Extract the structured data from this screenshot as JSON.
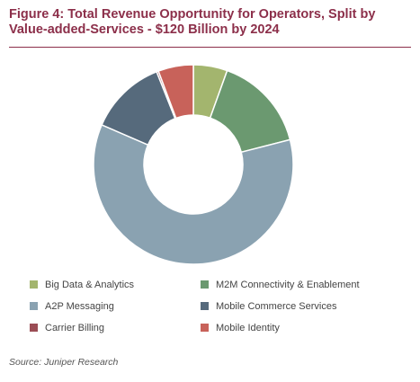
{
  "chart_data": {
    "type": "pie",
    "variant": "donut",
    "title": "Figure 4: Total Revenue Opportunity for Operators, Split by Value-added-Services - $120 Billion by 2024",
    "categories": [
      "Big Data & Analytics",
      "M2M Connectivity & Enablement",
      "A2P Messaging",
      "Mobile Commerce Services",
      "Carrier Billing",
      "Mobile Identity"
    ],
    "values": [
      5.5,
      15.5,
      60.5,
      12.5,
      0.3,
      5.7
    ],
    "value_unit": "percent (estimated)",
    "colors": [
      "#a3b56e",
      "#6b9970",
      "#8aa2b1",
      "#566a7c",
      "#9b4d55",
      "#c8625a"
    ],
    "legend_position": "bottom"
  },
  "source": "Source: Juniper Research"
}
